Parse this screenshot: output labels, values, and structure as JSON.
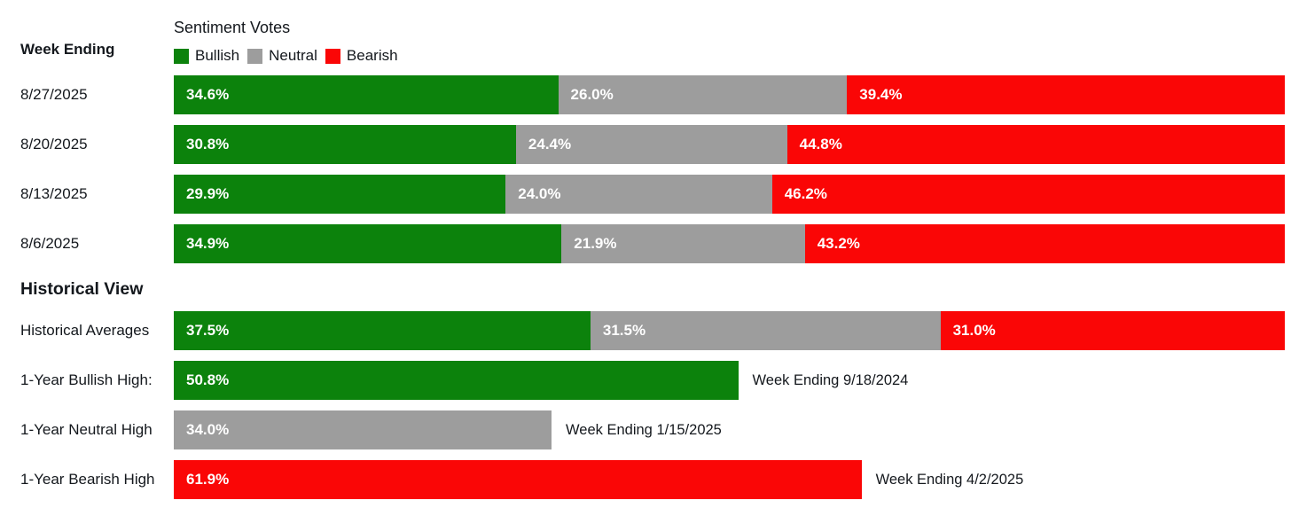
{
  "colors": {
    "bullish": "#0c820c",
    "neutral": "#9d9d9d",
    "bearish": "#fa0606",
    "bar_text": "#ffffff",
    "text": "#14181d"
  },
  "header": {
    "week_ending_label": "Week Ending"
  },
  "sections": {
    "historical_heading": "Historical View"
  },
  "chart_data": {
    "type": "bar",
    "stacked": true,
    "orientation": "horizontal",
    "title": "Sentiment Votes",
    "legend": [
      "Bullish",
      "Neutral",
      "Bearish"
    ],
    "xlim": [
      0,
      100
    ],
    "unit": "%",
    "weekly_rows": [
      {
        "label": "8/27/2025",
        "bullish": 34.6,
        "neutral": 26.0,
        "bearish": 39.4
      },
      {
        "label": "8/20/2025",
        "bullish": 30.8,
        "neutral": 24.4,
        "bearish": 44.8
      },
      {
        "label": "8/13/2025",
        "bullish": 29.9,
        "neutral": 24.0,
        "bearish": 46.2
      },
      {
        "label": "8/6/2025",
        "bullish": 34.9,
        "neutral": 21.9,
        "bearish": 43.2
      }
    ],
    "historical_rows": [
      {
        "label": "Historical Averages",
        "bullish": 37.5,
        "neutral": 31.5,
        "bearish": 31.0
      },
      {
        "label": "1-Year Bullish High:",
        "type": "bullish",
        "value": 50.8,
        "annotation": "Week Ending 9/18/2024"
      },
      {
        "label": "1-Year Neutral High",
        "type": "neutral",
        "value": 34.0,
        "annotation": "Week Ending 1/15/2025"
      },
      {
        "label": "1-Year Bearish High",
        "type": "bearish",
        "value": 61.9,
        "annotation": "Week Ending 4/2/2025"
      }
    ]
  }
}
